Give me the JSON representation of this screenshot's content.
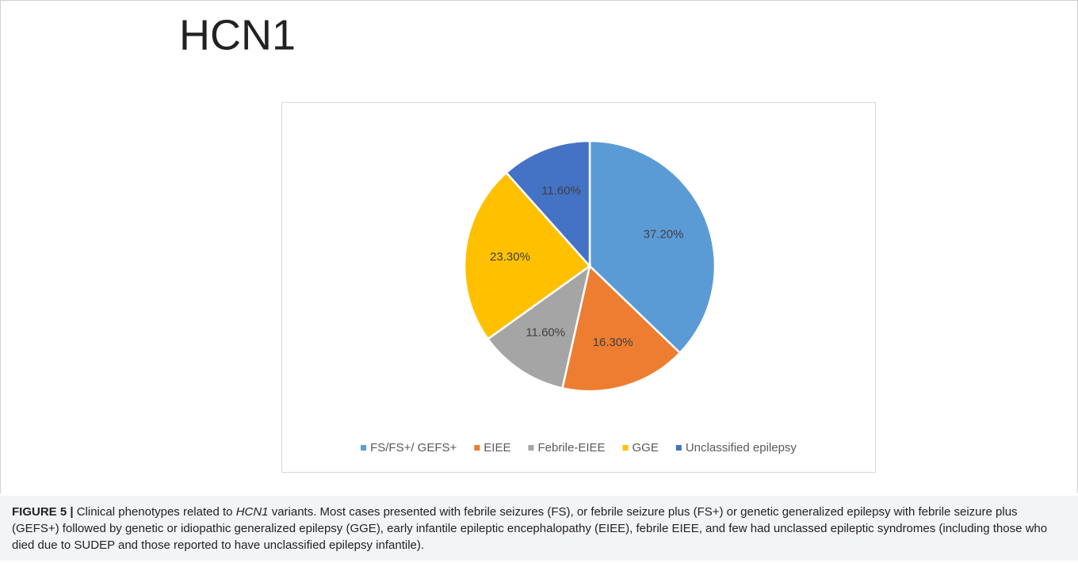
{
  "chart_data": {
    "type": "pie",
    "title": "HCN1",
    "categories": [
      "FS/FS+/ GEFS+",
      "EIEE",
      "Febrile-EIEE",
      "GGE",
      "Unclassified epilepsy"
    ],
    "values": [
      37.2,
      16.3,
      11.6,
      23.3,
      11.6
    ],
    "value_labels": [
      "37.20%",
      "16.30%",
      "11.60%",
      "23.30%",
      "11.60%"
    ],
    "colors": [
      "#5b9bd5",
      "#ed7d31",
      "#a5a5a5",
      "#ffc000",
      "#4472c4"
    ],
    "legend": "bottom"
  },
  "caption": {
    "label": "FIGURE 5 |",
    "parts": [
      "Clinical phenotypes related to ",
      "HCN1",
      " variants. Most cases presented with febrile seizures (FS), or febrile seizure plus (FS+) or genetic generalized epilepsy with febrile seizure plus (GEFS+) followed by genetic or idiopathic generalized epilepsy (GGE), early infantile epileptic encephalopathy (EIEE), febrile EIEE, and few had unclassed epileptic syndromes (including those who died due to SUDEP and those reported to have unclassified epilepsy infantile)."
    ]
  }
}
